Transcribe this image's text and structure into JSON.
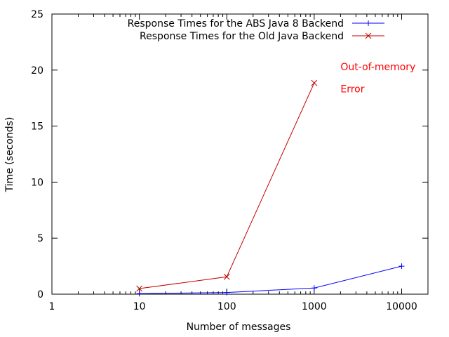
{
  "chart_data": {
    "type": "line",
    "title": "",
    "xlabel": "Number of messages",
    "ylabel": "Time (seconds)",
    "x_scale": "log",
    "xlim": [
      1,
      20000
    ],
    "ylim": [
      0,
      25
    ],
    "x_ticks": [
      {
        "value": 1,
        "label": "1"
      },
      {
        "value": 10,
        "label": "10"
      },
      {
        "value": 100,
        "label": "100"
      },
      {
        "value": 1000,
        "label": "1000"
      },
      {
        "value": 10000,
        "label": "10000"
      }
    ],
    "y_ticks": [
      {
        "value": 0,
        "label": "0"
      },
      {
        "value": 5,
        "label": "5"
      },
      {
        "value": 10,
        "label": "10"
      },
      {
        "value": 15,
        "label": "15"
      },
      {
        "value": 20,
        "label": "20"
      },
      {
        "value": 25,
        "label": "25"
      }
    ],
    "grid": false,
    "legend_position": "top-right",
    "series": [
      {
        "name": "Response Times for the ABS Java 8 Backend",
        "color": "#0000ff",
        "marker": "plus",
        "x": [
          10,
          100,
          1000,
          10000
        ],
        "y": [
          0.05,
          0.15,
          0.55,
          2.5
        ]
      },
      {
        "name": "Response Times for the Old Java Backend",
        "color": "#c00000",
        "marker": "cross",
        "x": [
          10,
          100,
          1000
        ],
        "y": [
          0.5,
          1.55,
          18.85
        ]
      }
    ],
    "annotations": [
      {
        "text": "Out-of-memory",
        "color": "#ff0000",
        "x": 2000,
        "y": 20.0
      },
      {
        "text": "Error",
        "color": "#ff0000",
        "x": 2000,
        "y": 18.0
      }
    ]
  }
}
